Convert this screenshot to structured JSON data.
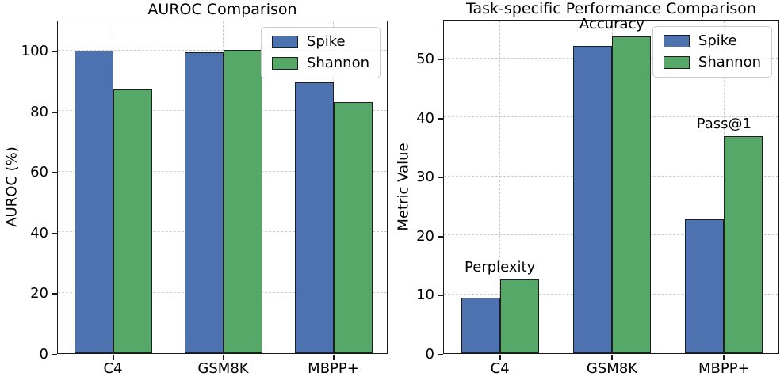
{
  "colors": {
    "spike": "#4C72B0",
    "shannon": "#55A868",
    "bar_edge": "#1f1f1f",
    "grid": "#cccccc",
    "spine": "#1a1a1a",
    "text": "#000000"
  },
  "chart_data": [
    {
      "type": "bar",
      "title": "AUROC Comparison",
      "xlabel": "",
      "ylabel": "AUROC (%)",
      "categories": [
        "C4",
        "GSM8K",
        "MBPP+"
      ],
      "series": [
        {
          "name": "Spike",
          "color": "#4C72B0",
          "values": [
            99.7,
            99.3,
            89.4
          ]
        },
        {
          "name": "Shannon",
          "color": "#55A868",
          "values": [
            87.0,
            100.0,
            82.8
          ]
        }
      ],
      "yticks": [
        0,
        20,
        40,
        60,
        80,
        100
      ],
      "ylim": [
        0,
        110
      ],
      "grid": "dashed, x and y",
      "legend_position": "upper right",
      "annotations": []
    },
    {
      "type": "bar",
      "title": "Task-specific Performance Comparison",
      "xlabel": "",
      "ylabel": "Metric Value",
      "categories": [
        "C4",
        "GSM8K",
        "MBPP+"
      ],
      "series": [
        {
          "name": "Spike",
          "color": "#4C72B0",
          "values": [
            9.4,
            52.1,
            22.7
          ]
        },
        {
          "name": "Shannon",
          "color": "#55A868",
          "values": [
            12.5,
            53.7,
            36.7
          ]
        }
      ],
      "yticks": [
        0,
        10,
        20,
        30,
        40,
        50
      ],
      "ylim": [
        0,
        56.6
      ],
      "grid": "dashed, x and y",
      "legend_position": "upper right",
      "annotations": [
        {
          "text": "Perplexity",
          "category": "C4"
        },
        {
          "text": "Accuracy",
          "category": "GSM8K"
        },
        {
          "text": "Pass@1",
          "category": "MBPP+"
        }
      ]
    }
  ]
}
